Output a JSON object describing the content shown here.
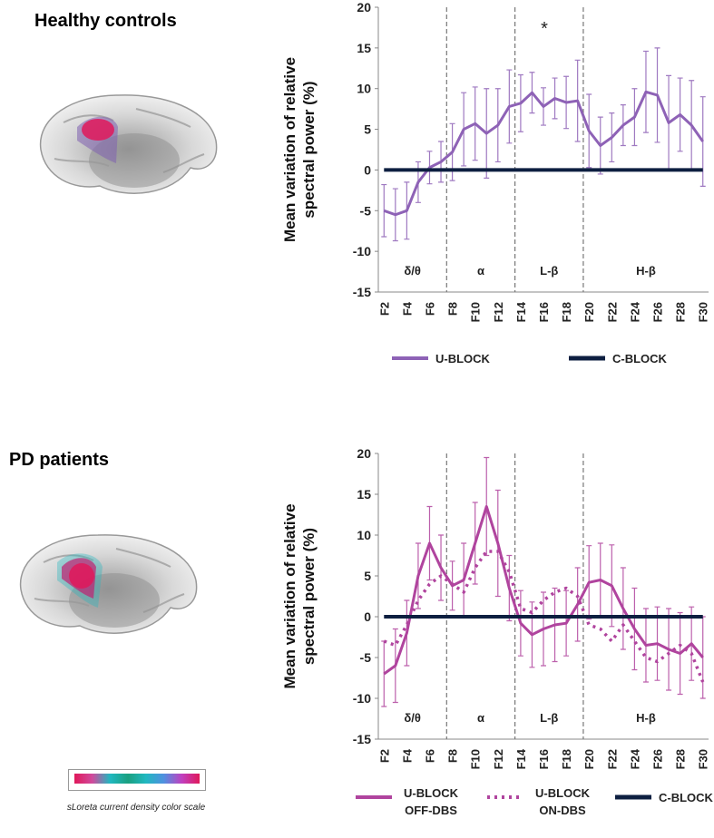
{
  "chart_data": [
    {
      "type": "line",
      "panel_label": "Healthy controls",
      "ylabel": [
        "Mean variation of relative",
        "spectral power (%)"
      ],
      "categories": [
        "F2",
        null,
        "F4",
        null,
        "F6",
        null,
        "F8",
        null,
        "F10",
        null,
        "F12",
        null,
        "F14",
        null,
        "F16",
        null,
        "F18",
        null,
        "F20",
        null,
        "F22",
        null,
        "F24",
        null,
        "F26",
        null,
        "F28",
        null,
        "F30"
      ],
      "bands": [
        "δ/θ",
        "α",
        "L-β",
        "H-β"
      ],
      "significance_marker": "*",
      "ylim": [
        -15,
        20
      ],
      "yticks": [
        -15,
        -10,
        -5,
        0,
        5,
        10,
        15,
        20
      ],
      "legend": "bottom",
      "series": [
        {
          "name": "U-BLOCK",
          "color": "#8e62b6",
          "style": "solid",
          "values": [
            -5,
            -5.5,
            -5,
            -1.5,
            0.3,
            1,
            2.2,
            5,
            5.7,
            4.5,
            5.5,
            7.8,
            8.2,
            9.5,
            7.8,
            8.8,
            8.3,
            8.5,
            4.8,
            3,
            4,
            5.5,
            6.5,
            9.6,
            9.2,
            5.8,
            6.8,
            5.5,
            3.5
          ],
          "errors": [
            3.2,
            3.2,
            3.5,
            2.5,
            2,
            2.5,
            3.5,
            4.5,
            4.5,
            5.5,
            4.5,
            4.5,
            3.5,
            2.5,
            2.3,
            2.5,
            3.2,
            5,
            4.5,
            3.5,
            3,
            2.5,
            3.5,
            5,
            5.8,
            5.8,
            4.5,
            5.5,
            5.5
          ]
        },
        {
          "name": "C-BLOCK",
          "color": "#0d1f40",
          "style": "solid",
          "values": [
            0,
            0,
            0,
            0,
            0,
            0,
            0,
            0,
            0,
            0,
            0,
            0,
            0,
            0,
            0,
            0,
            0,
            0,
            0,
            0,
            0,
            0,
            0,
            0,
            0,
            0,
            0,
            0,
            0
          ]
        }
      ]
    },
    {
      "type": "line",
      "panel_label": "PD patients",
      "ylabel": [
        "Mean variation of relative",
        "spectral power (%)"
      ],
      "categories": [
        "F2",
        null,
        "F4",
        null,
        "F6",
        null,
        "F8",
        null,
        "F10",
        null,
        "F12",
        null,
        "F14",
        null,
        "F16",
        null,
        "F18",
        null,
        "F20",
        null,
        "F22",
        null,
        "F24",
        null,
        "F26",
        null,
        "F28",
        null,
        "F30"
      ],
      "bands": [
        "δ/θ",
        "α",
        "L-β",
        "H-β"
      ],
      "ylim": [
        -15,
        20
      ],
      "yticks": [
        -15,
        -10,
        -5,
        0,
        5,
        10,
        15,
        20
      ],
      "legend": "bottom",
      "series": [
        {
          "name": "U-BLOCK OFF-DBS",
          "color": "#b0449e",
          "style": "solid",
          "values": [
            -7,
            -6,
            -2,
            5,
            9,
            6,
            3.8,
            4.5,
            9,
            13.5,
            9,
            3.5,
            -0.8,
            -2.2,
            -1.5,
            -1,
            -0.8,
            1.5,
            4.2,
            4.5,
            3.8,
            1,
            -1.5,
            -3.5,
            -3.3,
            -4,
            -4.5,
            -3.3,
            -5
          ],
          "errors": [
            4,
            4.5,
            4,
            4,
            4.5,
            4,
            3,
            4.5,
            5,
            6,
            6.5,
            4,
            4,
            4,
            4.5,
            4.5,
            4,
            4.5,
            4.5,
            4.5,
            5,
            5,
            5,
            4.5,
            4.5,
            5,
            5,
            4.5,
            5
          ]
        },
        {
          "name": "U-BLOCK ON-DBS",
          "color": "#b0449e",
          "style": "dotted",
          "values": [
            -3,
            -3.5,
            -1,
            2,
            4,
            5,
            4,
            3,
            6,
            8,
            8,
            5.5,
            1,
            0.5,
            2,
            3,
            3.5,
            2.5,
            -1,
            -1.5,
            -3,
            -1,
            -3,
            -5,
            -5.5,
            -4.5,
            -3.5,
            -4.5,
            -8
          ]
        },
        {
          "name": "C-BLOCK",
          "color": "#0d1f40",
          "style": "solid",
          "values": [
            0,
            0,
            0,
            0,
            0,
            0,
            0,
            0,
            0,
            0,
            0,
            0,
            0,
            0,
            0,
            0,
            0,
            0,
            0,
            0,
            0,
            0,
            0,
            0,
            0,
            0,
            0,
            0,
            0
          ]
        }
      ]
    }
  ],
  "color_scale_caption": "sLoreta current density color scale"
}
